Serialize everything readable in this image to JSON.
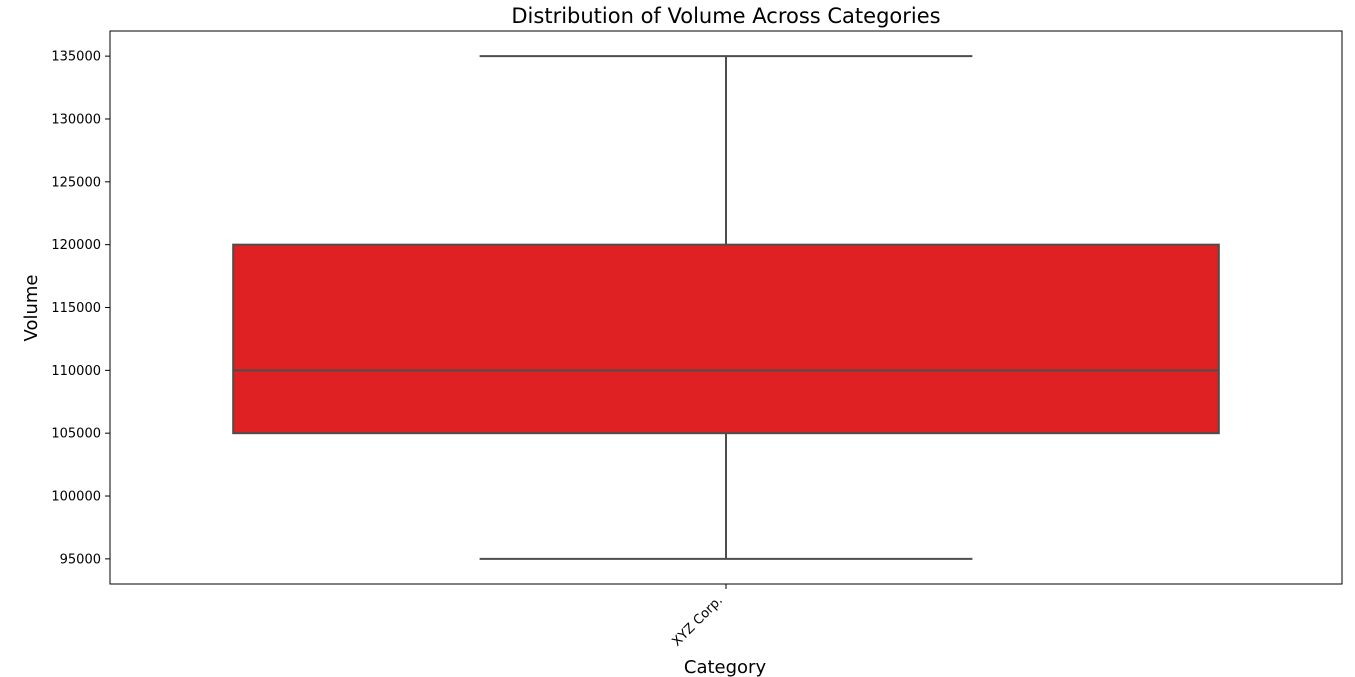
{
  "chart_data": {
    "type": "box",
    "title": "Distribution of Volume Across Categories",
    "xlabel": "Category",
    "ylabel": "Volume",
    "ylim": [
      93000,
      137000
    ],
    "yticks": [
      95000,
      100000,
      105000,
      110000,
      115000,
      120000,
      125000,
      130000,
      135000
    ],
    "categories": [
      "XYZ Corp."
    ],
    "boxes": [
      {
        "category": "XYZ Corp.",
        "whisker_low": 95000,
        "q1": 105000,
        "median": 110000,
        "q3": 120000,
        "whisker_high": 135000
      }
    ],
    "box_color": "#df2123",
    "line_color": "#4d4d4d",
    "grid": false
  }
}
